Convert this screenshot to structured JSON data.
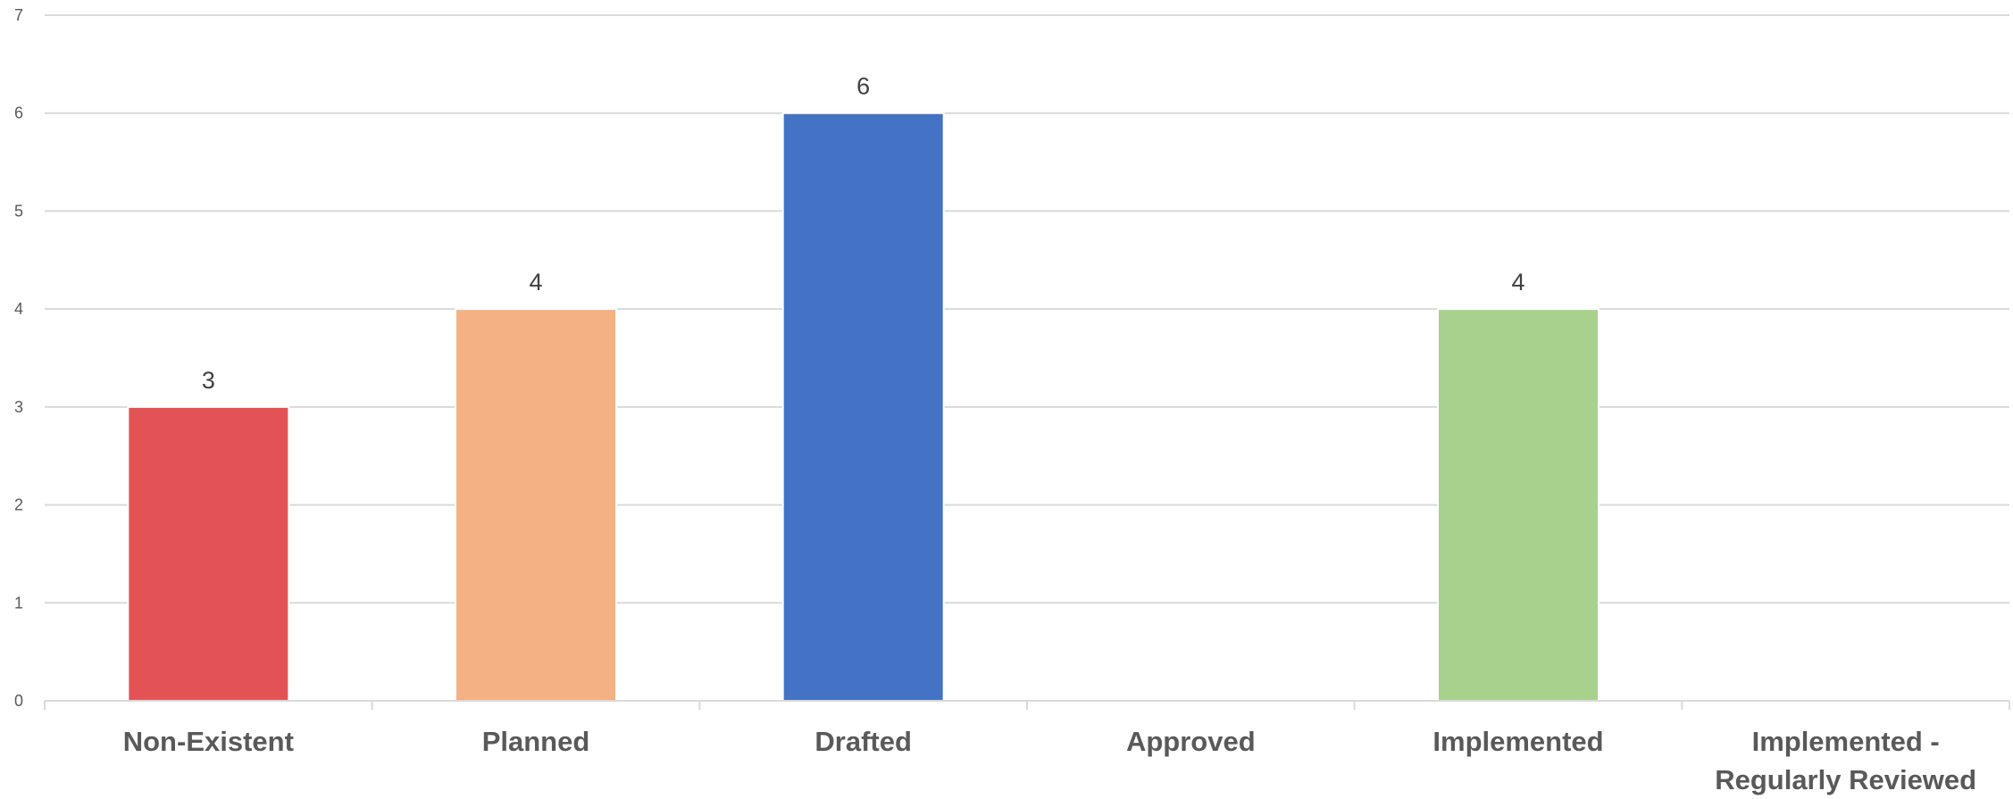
{
  "chart_data": {
    "type": "bar",
    "title": "",
    "xlabel": "",
    "ylabel": "",
    "categories": [
      "Non-Existent",
      "Planned",
      "Drafted",
      "Approved",
      "Implemented",
      "Implemented - Regularly Reviewed"
    ],
    "category_label_lines": [
      [
        "Non-Existent"
      ],
      [
        "Planned"
      ],
      [
        "Drafted"
      ],
      [
        "Approved"
      ],
      [
        "Implemented"
      ],
      [
        "Implemented -",
        "Regularly Reviewed"
      ]
    ],
    "values": [
      3,
      4,
      6,
      null,
      4,
      null
    ],
    "data_labels": [
      "3",
      "4",
      "6",
      "",
      "4",
      ""
    ],
    "colors": [
      "#e35355",
      "#f4b184",
      "#4472c4",
      "#ffffff",
      "#a9d18e",
      "#ffffff"
    ],
    "ylim": [
      0,
      7
    ],
    "yticks": [
      0,
      1,
      2,
      3,
      4,
      5,
      6,
      7
    ],
    "ytick_labels": [
      "0",
      "1",
      "2",
      "3",
      "4",
      "5",
      "6",
      "7"
    ],
    "grid": true,
    "legend": "none"
  }
}
